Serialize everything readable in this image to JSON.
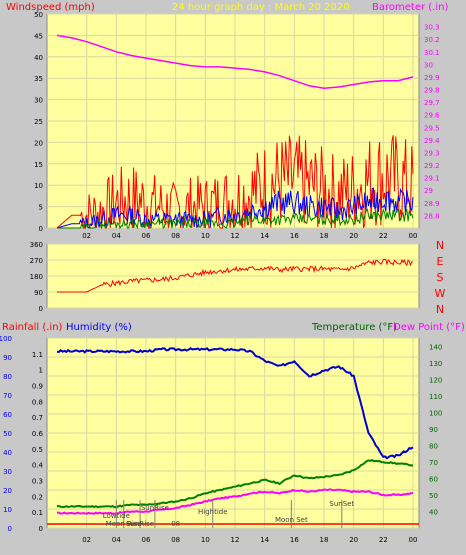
{
  "header": {
    "left_label": "Windspeed (mph)",
    "title": "24 hour graph day : March 20 2020",
    "right_label": "Barometer (.in)"
  },
  "panel3_header": {
    "rainfall_label": "Rainfall (.in)",
    "humidity_label": "Humidity (%)",
    "temperature_label": "Temperature (°F)",
    "dewpoint_label": "Dew Point (°F)"
  },
  "colors": {
    "plot_bg": "#ffffa0",
    "wind_gust": "#ff0000",
    "wind_avg": "#0000ff",
    "wind_low": "#008000",
    "barometer": "#ff00ff",
    "direction": "#ff0000",
    "humidity": "#0000cc",
    "temperature": "#008000",
    "dewpoint": "#ff00ff",
    "rain": "#ff0000",
    "label_red": "#ff0000",
    "label_yellow": "#ffff00",
    "label_blue": "#0000ff",
    "label_green": "#006400"
  },
  "chart_data": [
    {
      "type": "line",
      "ylabel": "Windspeed (mph)",
      "y2label": "Barometer (.in)",
      "x_ticks": [
        "02",
        "04",
        "06",
        "08",
        "10",
        "12",
        "14",
        "16",
        "18",
        "20",
        "22",
        "00"
      ],
      "ylim": [
        0,
        50
      ],
      "y_ticks": [
        "0",
        "5",
        "10",
        "15",
        "20",
        "25",
        "30",
        "35",
        "40",
        "45",
        "50"
      ],
      "y2lim": [
        28.7,
        30.4
      ],
      "y2_ticks": [
        "28.8",
        "28.9",
        "29",
        "29.1",
        "29.2",
        "29.3",
        "29.4",
        "29.5",
        "29.6",
        "29.7",
        "29.8",
        "29.9",
        "30",
        "30.1",
        "30.2",
        "30.3"
      ],
      "x_hours": [
        0,
        1,
        2,
        3,
        4,
        5,
        6,
        7,
        8,
        9,
        10,
        11,
        12,
        13,
        14,
        15,
        16,
        17,
        18,
        19,
        20,
        21,
        22,
        23,
        24
      ],
      "series": [
        {
          "name": "gust",
          "values": [
            0,
            3,
            3,
            4,
            6,
            7,
            6,
            5,
            4,
            5,
            5,
            6,
            7,
            8,
            10,
            11,
            11,
            10,
            9,
            8,
            9,
            11,
            12,
            11,
            10
          ]
        },
        {
          "name": "avg",
          "values": [
            0,
            1,
            1,
            2,
            3,
            3,
            2,
            2,
            2,
            2,
            2,
            3,
            3,
            4,
            5,
            6,
            6,
            5,
            5,
            4,
            5,
            6,
            7,
            6,
            6
          ]
        },
        {
          "name": "low",
          "values": [
            0,
            0,
            0,
            1,
            1,
            1,
            1,
            1,
            1,
            1,
            1,
            1,
            1,
            2,
            2,
            2,
            2,
            2,
            2,
            2,
            2,
            3,
            3,
            3,
            3
          ]
        },
        {
          "name": "barometer",
          "values": [
            30.23,
            30.21,
            30.18,
            30.14,
            30.1,
            30.07,
            30.05,
            30.03,
            30.01,
            29.99,
            29.98,
            29.98,
            29.97,
            29.96,
            29.94,
            29.91,
            29.87,
            29.83,
            29.81,
            29.82,
            29.84,
            29.86,
            29.87,
            29.87,
            29.9
          ]
        }
      ]
    },
    {
      "type": "line",
      "ylim": [
        0,
        360
      ],
      "y_ticks": [
        "0",
        "90",
        "180",
        "270",
        "360"
      ],
      "right_labels": [
        "N",
        "W",
        "S",
        "E",
        "N"
      ],
      "x_hours": [
        0,
        1,
        2,
        3,
        4,
        5,
        6,
        7,
        8,
        9,
        10,
        11,
        12,
        13,
        14,
        15,
        16,
        17,
        18,
        19,
        20,
        21,
        22,
        23,
        24
      ],
      "series": [
        {
          "name": "direction",
          "values": [
            90,
            90,
            90,
            130,
            140,
            150,
            155,
            160,
            170,
            185,
            200,
            210,
            215,
            220,
            225,
            215,
            220,
            220,
            220,
            215,
            225,
            255,
            260,
            255,
            255
          ]
        }
      ]
    },
    {
      "type": "line",
      "x_ticks": [
        "02",
        "04",
        "06",
        "08",
        "10",
        "12",
        "14",
        "16",
        "18",
        "20",
        "22",
        "00"
      ],
      "rain_ylim": [
        0,
        1.2
      ],
      "rain_ticks": [
        "0",
        "0.1",
        "0.2",
        "0.3",
        "0.4",
        "0.5",
        "0.6",
        "0.7",
        "0.8",
        "0.9",
        "1",
        "1.1"
      ],
      "humidity_ylim": [
        0,
        100
      ],
      "humidity_ticks": [
        "0",
        "10",
        "20",
        "30",
        "40",
        "50",
        "60",
        "70",
        "80",
        "90",
        "100"
      ],
      "temp_ylim": [
        30,
        145
      ],
      "temp_ticks": [
        "40",
        "50",
        "60",
        "70",
        "80",
        "90",
        "100",
        "110",
        "120",
        "130",
        "140"
      ],
      "x_hours": [
        0,
        1,
        2,
        3,
        4,
        5,
        6,
        7,
        8,
        9,
        10,
        11,
        12,
        13,
        14,
        15,
        16,
        17,
        18,
        19,
        20,
        21,
        22,
        23,
        24
      ],
      "series": [
        {
          "name": "humidity",
          "values": [
            93,
            93,
            93,
            93,
            93,
            93,
            93,
            94,
            94,
            94,
            94,
            94,
            94,
            93,
            88,
            85,
            88,
            80,
            83,
            85,
            80,
            50,
            37,
            38,
            43
          ]
        },
        {
          "name": "temperature",
          "values": [
            43,
            43,
            43,
            43,
            43,
            44,
            44,
            45,
            46,
            48,
            51,
            53,
            55,
            57,
            59,
            57,
            62,
            60,
            61,
            62,
            65,
            71,
            70,
            69,
            68
          ]
        },
        {
          "name": "dewpoint",
          "values": [
            39,
            39,
            39,
            39,
            39,
            40,
            40,
            41,
            42,
            44,
            46,
            48,
            49,
            51,
            52,
            51,
            53,
            52,
            53,
            53,
            52,
            52,
            50,
            50,
            51
          ]
        },
        {
          "name": "rain",
          "values": [
            0,
            0,
            0,
            0,
            0,
            0,
            0,
            0,
            0,
            0,
            0,
            0,
            0,
            0,
            0,
            0,
            0,
            0,
            0,
            0,
            0,
            0,
            0,
            0,
            0
          ]
        }
      ],
      "events": [
        {
          "label": "Lowtide",
          "hour": 4.0
        },
        {
          "label": "SunRise",
          "hour": 6.6
        },
        {
          "label": "Moon Rise",
          "hour": 4.5
        },
        {
          "label": "SunRise",
          "hour": 5.6
        },
        {
          "label": "08",
          "hour": 8.0
        },
        {
          "label": "Hightide",
          "hour": 10.5
        },
        {
          "label": "Moon Set",
          "hour": 15.8
        },
        {
          "label": "SunSet",
          "hour": 19.2
        }
      ]
    }
  ]
}
